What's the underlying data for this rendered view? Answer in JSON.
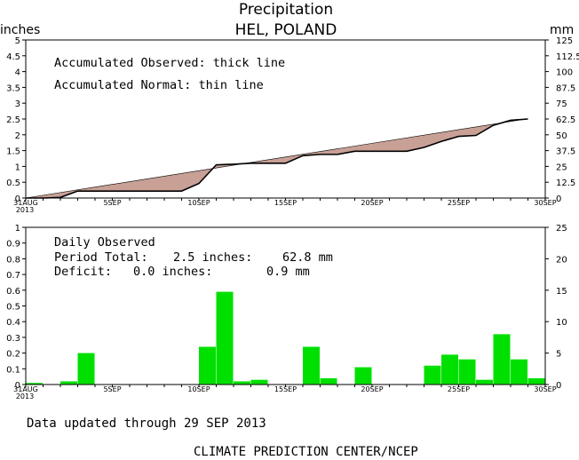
{
  "header": {
    "title": "Precipitation",
    "subtitle": "HEL, POLAND",
    "left_unit": "inches",
    "right_unit": "mm"
  },
  "colors": {
    "fill": "#c8a096",
    "bar": "#00e000",
    "axis": "#000000"
  },
  "chart_data": [
    {
      "type": "area",
      "panel": "accumulated",
      "annotations": [
        "Accumulated Observed: thick line",
        "Accumulated Normal: thin line"
      ],
      "x_labels": [
        "31AUG",
        "5SEP",
        "10SEP",
        "15SEP",
        "20SEP",
        "25SEP",
        "30SEP"
      ],
      "x_label_days": [
        0,
        5,
        10,
        15,
        20,
        25,
        30
      ],
      "x_year_label": "2013",
      "y_range_in": [
        0,
        5
      ],
      "y_ticks_in": [
        "0",
        "0.5",
        "1",
        "1.5",
        "2",
        "2.5",
        "3",
        "3.5",
        "4",
        "4.5",
        "5"
      ],
      "y_ticks_mm": [
        "0",
        "12.5",
        "25",
        "37.5",
        "50",
        "62.5",
        "75",
        "87.5",
        "100",
        "112.5",
        "125"
      ],
      "series": [
        {
          "name": "Accumulated Observed",
          "x": [
            0,
            1,
            2,
            3,
            4,
            5,
            6,
            7,
            8,
            9,
            10,
            11,
            12,
            13,
            14,
            15,
            16,
            17,
            18,
            19,
            20,
            21,
            22,
            23,
            24,
            25,
            26,
            27,
            28,
            29
          ],
          "values": [
            0.0,
            0.0,
            0.02,
            0.22,
            0.22,
            0.22,
            0.22,
            0.22,
            0.22,
            0.22,
            0.46,
            1.05,
            1.07,
            1.1,
            1.1,
            1.1,
            1.34,
            1.38,
            1.38,
            1.48,
            1.48,
            1.48,
            1.48,
            1.6,
            1.79,
            1.95,
            1.98,
            2.3,
            2.46,
            2.5
          ]
        },
        {
          "name": "Accumulated Normal",
          "x": [
            0,
            29
          ],
          "values": [
            0.0,
            2.51
          ]
        }
      ]
    },
    {
      "type": "bar",
      "panel": "daily",
      "annotations": {
        "heading": "Daily Observed",
        "total_label": "Period Total:",
        "total_in": "2.5 inches:",
        "total_mm": "62.8 mm",
        "deficit_label": "Deficit:",
        "deficit_in": "0.0 inches:",
        "deficit_mm": "0.9 mm"
      },
      "x_labels": [
        "31AUG",
        "5SEP",
        "10SEP",
        "15SEP",
        "20SEP",
        "25SEP",
        "30SEP"
      ],
      "x_label_days": [
        0,
        5,
        10,
        15,
        20,
        25,
        30
      ],
      "x_year_label": "2013",
      "y_range_in": [
        0,
        1
      ],
      "y_ticks_in": [
        "0",
        "0.1",
        "0.2",
        "0.3",
        "0.4",
        "0.5",
        "0.6",
        "0.7",
        "0.8",
        "0.9",
        "1"
      ],
      "y_ticks_mm": [
        "0",
        "5",
        "10",
        "15",
        "20",
        "25"
      ],
      "x": [
        0,
        1,
        2,
        3,
        4,
        5,
        6,
        7,
        8,
        9,
        10,
        11,
        12,
        13,
        14,
        15,
        16,
        17,
        18,
        19,
        20,
        21,
        22,
        23,
        24,
        25,
        26,
        27,
        28,
        29
      ],
      "values": [
        0.01,
        0.0,
        0.02,
        0.2,
        0.0,
        0.0,
        0.0,
        0.0,
        0.0,
        0.0,
        0.24,
        0.59,
        0.02,
        0.03,
        0.0,
        0.0,
        0.24,
        0.04,
        0.0,
        0.11,
        0.0,
        0.0,
        0.0,
        0.12,
        0.19,
        0.16,
        0.03,
        0.32,
        0.16,
        0.04
      ]
    }
  ],
  "footer": {
    "updated": "Data updated through 29 SEP 2013",
    "credit": "CLIMATE PREDICTION CENTER/NCEP"
  }
}
